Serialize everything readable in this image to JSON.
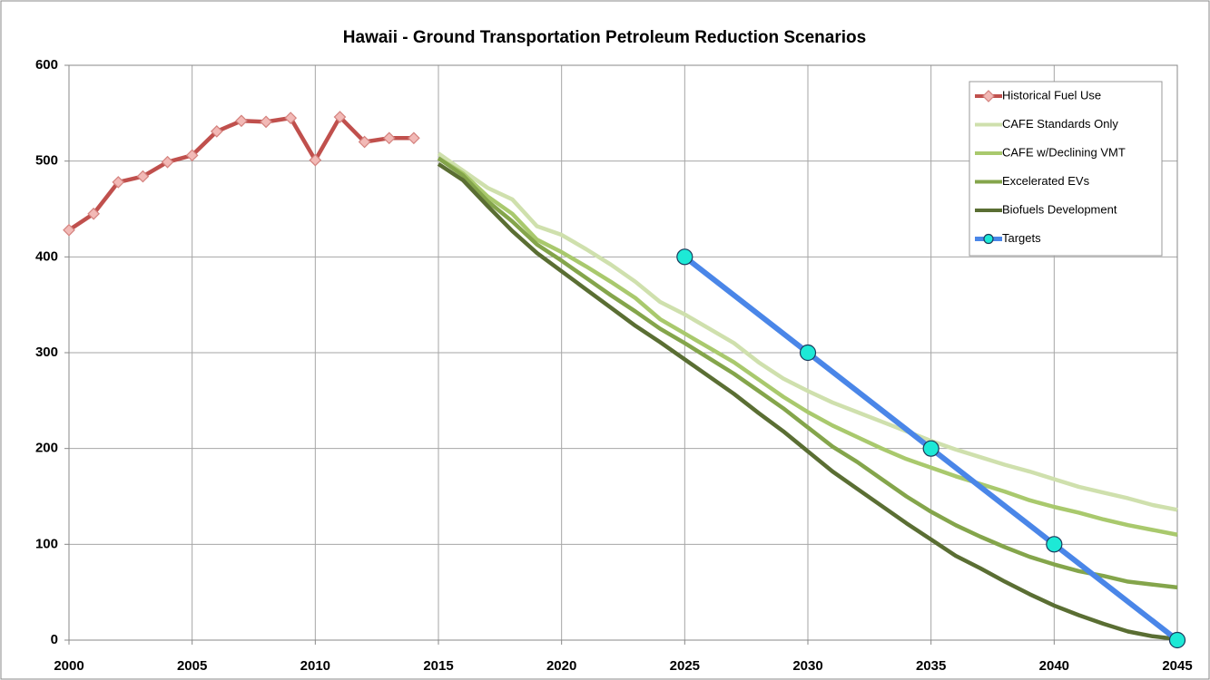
{
  "chart_data": {
    "type": "line",
    "title": "Hawaii - Ground Transportation Petroleum Reduction Scenarios",
    "xlim": [
      2000,
      2045
    ],
    "xticks": [
      2000,
      2005,
      2010,
      2015,
      2020,
      2025,
      2030,
      2035,
      2040,
      2045
    ],
    "ylim": [
      0,
      600
    ],
    "yticks": [
      0,
      100,
      200,
      300,
      400,
      500,
      600
    ],
    "grid": true,
    "legend": "upper right",
    "series": [
      {
        "name": "Historical Fuel Use",
        "color": "#c0504d",
        "marker": "diamond",
        "marker_color": "#f2b9b6",
        "x": [
          2000,
          2001,
          2002,
          2003,
          2004,
          2005,
          2006,
          2007,
          2008,
          2009,
          2010,
          2011,
          2012,
          2013,
          2014
        ],
        "values": [
          428,
          445,
          478,
          484,
          499,
          506,
          531,
          542,
          541,
          545,
          501,
          546,
          520,
          524,
          524
        ]
      },
      {
        "name": "CAFE Standards Only",
        "color": "#cfe0ad",
        "x": [
          2015,
          2016,
          2017,
          2018,
          2019,
          2020,
          2021,
          2022,
          2023,
          2024,
          2025,
          2026,
          2027,
          2028,
          2029,
          2030,
          2031,
          2032,
          2033,
          2034,
          2035,
          2036,
          2037,
          2038,
          2039,
          2040,
          2041,
          2042,
          2043,
          2044,
          2045
        ],
        "values": [
          508,
          490,
          472,
          460,
          432,
          423,
          408,
          392,
          374,
          353,
          340,
          325,
          310,
          290,
          273,
          260,
          248,
          238,
          228,
          218,
          208,
          199,
          191,
          183,
          176,
          168,
          160,
          154,
          148,
          141,
          136
        ]
      },
      {
        "name": "CAFE w/Declining VMT",
        "color": "#a9c96d",
        "x": [
          2015,
          2016,
          2017,
          2018,
          2019,
          2020,
          2021,
          2022,
          2023,
          2024,
          2025,
          2026,
          2027,
          2028,
          2029,
          2030,
          2031,
          2032,
          2033,
          2034,
          2035,
          2036,
          2037,
          2038,
          2039,
          2040,
          2041,
          2042,
          2043,
          2044,
          2045
        ],
        "values": [
          503,
          487,
          463,
          445,
          418,
          405,
          390,
          374,
          357,
          335,
          320,
          305,
          290,
          272,
          254,
          238,
          224,
          212,
          200,
          189,
          180,
          171,
          163,
          155,
          146,
          139,
          133,
          126,
          120,
          115,
          110
        ]
      },
      {
        "name": "Excelerated EVs",
        "color": "#84a54b",
        "x": [
          2015,
          2016,
          2017,
          2018,
          2019,
          2020,
          2021,
          2022,
          2023,
          2024,
          2025,
          2026,
          2027,
          2028,
          2029,
          2030,
          2031,
          2032,
          2033,
          2034,
          2035,
          2036,
          2037,
          2038,
          2039,
          2040,
          2041,
          2042,
          2043,
          2044,
          2045
        ],
        "values": [
          503,
          485,
          458,
          437,
          413,
          396,
          378,
          360,
          343,
          325,
          310,
          294,
          278,
          260,
          242,
          222,
          202,
          186,
          168,
          150,
          134,
          120,
          108,
          97,
          87,
          79,
          72,
          67,
          61,
          58,
          55
        ]
      },
      {
        "name": "Biofuels Development",
        "color": "#5a6e33",
        "x": [
          2015,
          2016,
          2017,
          2018,
          2019,
          2020,
          2021,
          2022,
          2023,
          2024,
          2025,
          2026,
          2027,
          2028,
          2029,
          2030,
          2031,
          2032,
          2033,
          2034,
          2035,
          2036,
          2037,
          2038,
          2039,
          2040,
          2041,
          2042,
          2043,
          2044,
          2045
        ],
        "values": [
          497,
          480,
          453,
          427,
          404,
          385,
          366,
          347,
          328,
          311,
          293,
          275,
          257,
          237,
          218,
          197,
          176,
          158,
          140,
          122,
          105,
          88,
          75,
          61,
          48,
          36,
          26,
          17,
          9,
          4,
          1
        ]
      },
      {
        "name": "Targets",
        "color": "#4a86e8",
        "marker": "circle",
        "marker_color": "#1de9d6",
        "x": [
          2025,
          2030,
          2035,
          2040,
          2045
        ],
        "values": [
          400,
          300,
          200,
          100,
          0
        ]
      }
    ]
  }
}
